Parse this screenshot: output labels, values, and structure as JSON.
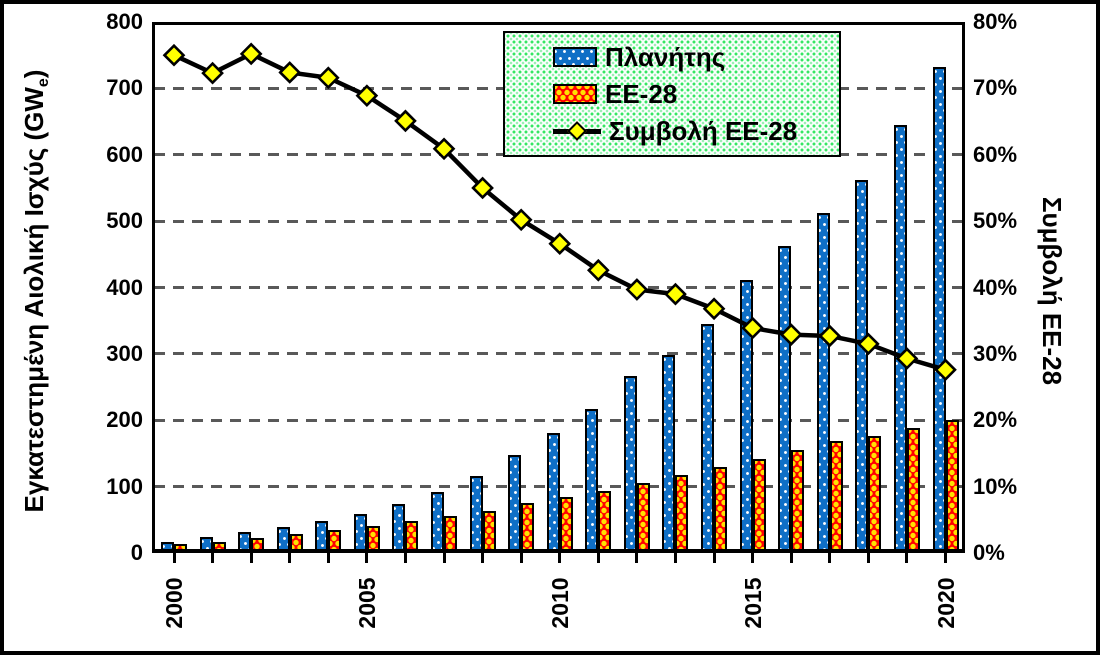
{
  "chart_data": {
    "type": "combo-bar-line",
    "categories": [
      2000,
      2001,
      2002,
      2003,
      2004,
      2005,
      2006,
      2007,
      2008,
      2009,
      2010,
      2011,
      2012,
      2013,
      2014,
      2015,
      2016,
      2017,
      2018,
      2019,
      2020
    ],
    "left_axis": {
      "title_main": "Εγκατεστημένη Αιολική Ισχύς (GW",
      "title_subscript": "e",
      "title_close": ")",
      "min": 0,
      "max": 800,
      "step": 100,
      "tick_labels": [
        "0",
        "100",
        "200",
        "300",
        "400",
        "500",
        "600",
        "700",
        "800"
      ]
    },
    "right_axis": {
      "title": "Συμβολή ΕΕ-28",
      "min": 0,
      "max": 80,
      "step": 10,
      "tick_labels": [
        "0%",
        "10%",
        "20%",
        "30%",
        "40%",
        "50%",
        "60%",
        "70%",
        "80%"
      ]
    },
    "x_axis": {
      "labeled_years": [
        "2000",
        "2005",
        "2010",
        "2015",
        "2020"
      ],
      "labeled_indices": [
        0,
        5,
        10,
        15,
        20
      ]
    },
    "series": [
      {
        "name": "Πλανήτης",
        "type": "bar",
        "axis": "left",
        "fill": "#0F6FC6",
        "pattern": "white-dots-on-blue",
        "border": "#000000",
        "values": [
          17,
          24,
          31,
          39,
          48,
          59,
          74,
          92,
          116,
          148,
          181,
          217,
          266,
          299,
          345,
          411,
          462,
          512,
          562,
          645,
          732
        ]
      },
      {
        "name": "ΕΕ-28",
        "type": "bar",
        "axis": "left",
        "fill": "#FF0000",
        "pattern": "yellow-dots-on-red",
        "border": "#000000",
        "values": [
          13,
          17,
          23,
          28,
          34,
          41,
          48,
          56,
          64,
          75,
          84,
          93,
          106,
          118,
          129,
          141,
          155,
          168,
          176,
          189,
          200
        ]
      },
      {
        "name": "Συμβολή ΕΕ-28",
        "type": "line",
        "axis": "right",
        "line_color": "#000000",
        "marker": "diamond",
        "marker_fill": "#FFFF00",
        "marker_border": "#000000",
        "values_percent": [
          75.0,
          72.3,
          75.2,
          72.4,
          71.6,
          68.9,
          65.1,
          60.9,
          55.0,
          50.2,
          46.6,
          42.6,
          39.7,
          39.0,
          36.8,
          33.9,
          32.9,
          32.7,
          31.5,
          29.3,
          27.6
        ]
      }
    ],
    "grid": {
      "horizontal": true,
      "style": "dashed",
      "color": "#595959"
    },
    "legend": {
      "position": "top-center",
      "background_pattern": "green-dots",
      "border": "#000000"
    }
  }
}
